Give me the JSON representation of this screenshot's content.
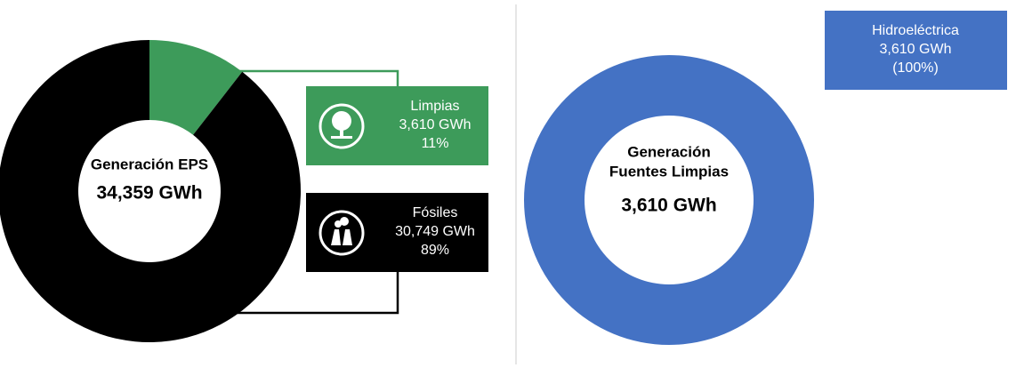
{
  "chart_data": [
    {
      "type": "donut",
      "center_label": [
        "Generación EPS",
        "34,359 GWh"
      ],
      "categories": [
        "Limpias",
        "Fósiles"
      ],
      "values": [
        3610,
        30749
      ],
      "value_labels": [
        "3,610 GWh",
        "30,749 GWh"
      ],
      "percent_labels": [
        "11%",
        "89%"
      ],
      "colors": [
        "#3d9b5a",
        "#000000"
      ]
    },
    {
      "type": "donut",
      "center_label": [
        "Generación",
        "Fuentes Limpias",
        "3,610 GWh"
      ],
      "categories": [
        "Hidroeléctrica"
      ],
      "values": [
        3610
      ],
      "value_labels": [
        "3,610 GWh"
      ],
      "percent_labels": [
        "(100%)"
      ],
      "colors": [
        "#4472c4"
      ]
    }
  ]
}
